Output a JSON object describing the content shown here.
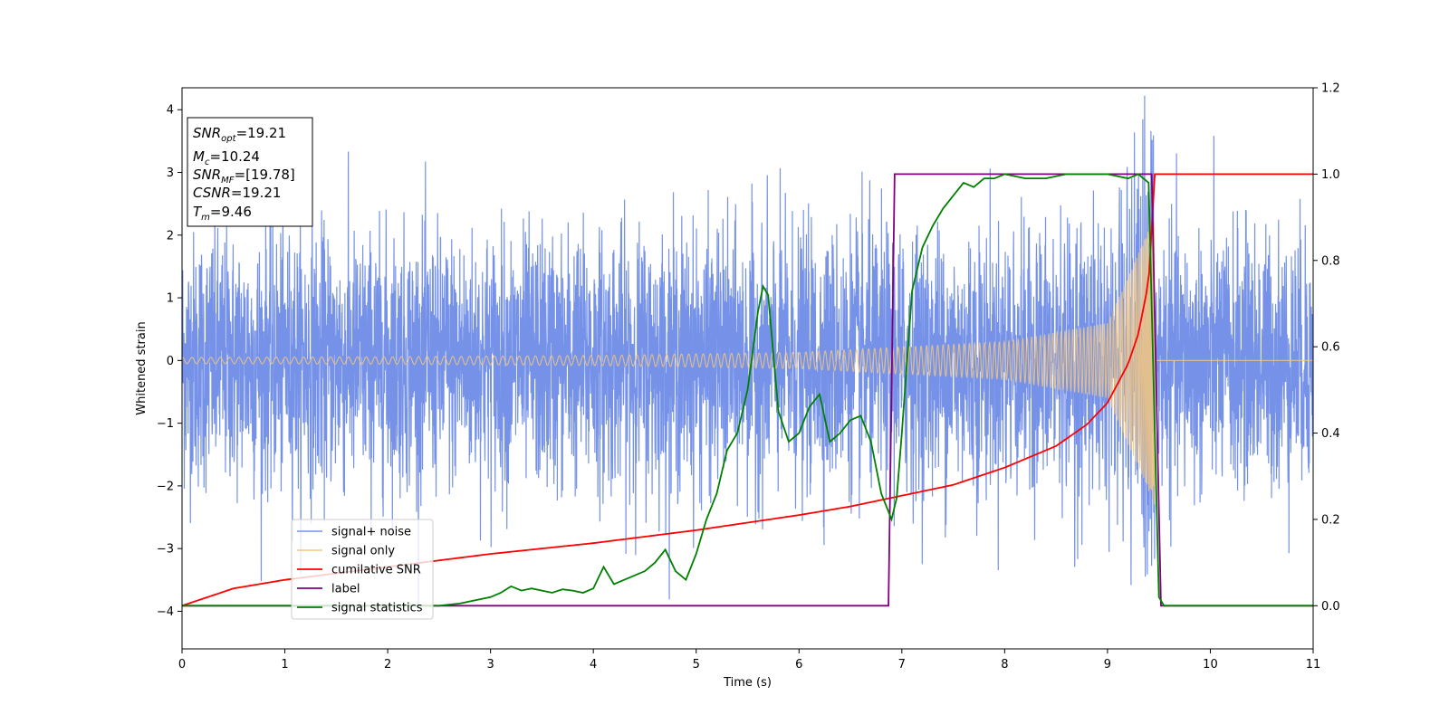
{
  "chart_data": {
    "type": "line",
    "xlabel": "Time (s)",
    "ylabel": "Whitened strain",
    "xlim": [
      0,
      11
    ],
    "ylim": [
      -4.6,
      4.35
    ],
    "y2lim": [
      -0.1,
      1.2
    ],
    "xticks": [
      0,
      1,
      2,
      3,
      4,
      5,
      6,
      7,
      8,
      9,
      10,
      11
    ],
    "yticks": [
      -4,
      -3,
      -2,
      -1,
      0,
      1,
      2,
      3,
      4
    ],
    "y2ticks": [
      0.0,
      0.2,
      0.4,
      0.6,
      0.8,
      1.0,
      1.2
    ],
    "xtick_labels": [
      "0",
      "1",
      "2",
      "3",
      "4",
      "5",
      "6",
      "7",
      "8",
      "9",
      "10",
      "11"
    ],
    "ytick_labels": [
      "−4",
      "−3",
      "−2",
      "−1",
      "0",
      "1",
      "2",
      "3",
      "4"
    ],
    "y2tick_labels": [
      "0.0",
      "0.2",
      "0.4",
      "0.6",
      "0.8",
      "1.0",
      "1.2"
    ],
    "grid": false,
    "legend_position": "lower-left",
    "info_box": {
      "lines": [
        {
          "main": "SNR",
          "sub": "opt",
          "rest": "=19.21"
        },
        {
          "main": "M",
          "sub": "c",
          "rest": "=10.24"
        },
        {
          "main": "SNR",
          "sub": "MF",
          "rest": "=[19.78]"
        },
        {
          "main": "CSNR",
          "sub": "",
          "rest": "=19.21"
        },
        {
          "main": "T",
          "sub": "m",
          "rest": "=9.46"
        }
      ]
    },
    "series": [
      {
        "name": "signal+ noise",
        "axis": "left",
        "color": "#7592e8",
        "kind": "noise",
        "noise_std": 1.0,
        "envelope_x": [
          0,
          2,
          4,
          6,
          8,
          9,
          9.46
        ],
        "envelope_y": [
          0.05,
          0.06,
          0.08,
          0.13,
          0.3,
          0.6,
          2.3
        ],
        "end_x": 9.46
      },
      {
        "name": "signal only",
        "axis": "left",
        "color": "#f5c77e",
        "kind": "chirp",
        "envelope_x": [
          0,
          2,
          4,
          6,
          8,
          9,
          9.46
        ],
        "envelope_y": [
          0.05,
          0.06,
          0.08,
          0.13,
          0.3,
          0.6,
          2.3
        ],
        "end_x": 9.46
      },
      {
        "name": "cumilative SNR",
        "axis": "right",
        "color": "#ff0000",
        "x": [
          0,
          0.5,
          1,
          2,
          3,
          4,
          5,
          6,
          6.5,
          7,
          7.5,
          8,
          8.5,
          8.8,
          9.0,
          9.2,
          9.3,
          9.4,
          9.46,
          11
        ],
        "y": [
          0.0,
          0.04,
          0.06,
          0.09,
          0.12,
          0.145,
          0.175,
          0.21,
          0.23,
          0.255,
          0.28,
          0.32,
          0.37,
          0.42,
          0.47,
          0.56,
          0.63,
          0.75,
          1.0,
          1.0
        ]
      },
      {
        "name": "label",
        "axis": "right",
        "color": "#800080",
        "x": [
          0,
          6.87,
          6.93,
          9.43,
          9.52,
          11
        ],
        "y": [
          0,
          0,
          1,
          1,
          0,
          0
        ]
      },
      {
        "name": "signal statistics",
        "axis": "right",
        "color": "#008000",
        "x": [
          0,
          0.5,
          1,
          1.5,
          2,
          2.5,
          2.7,
          2.8,
          2.9,
          3.0,
          3.1,
          3.2,
          3.3,
          3.4,
          3.5,
          3.6,
          3.7,
          3.8,
          3.9,
          4.0,
          4.1,
          4.2,
          4.3,
          4.4,
          4.5,
          4.6,
          4.7,
          4.8,
          4.9,
          5.0,
          5.1,
          5.2,
          5.3,
          5.4,
          5.5,
          5.6,
          5.65,
          5.7,
          5.8,
          5.9,
          6.0,
          6.1,
          6.2,
          6.3,
          6.4,
          6.5,
          6.6,
          6.7,
          6.8,
          6.9,
          6.95,
          7.0,
          7.1,
          7.2,
          7.3,
          7.4,
          7.5,
          7.6,
          7.7,
          7.8,
          7.9,
          8.0,
          8.2,
          8.4,
          8.6,
          8.8,
          9.0,
          9.2,
          9.3,
          9.4,
          9.45,
          9.5,
          9.55,
          9.6,
          11
        ],
        "y": [
          0.0,
          0.0,
          0.0,
          0.0,
          0.0,
          0.0,
          0.005,
          0.01,
          0.015,
          0.02,
          0.03,
          0.045,
          0.035,
          0.04,
          0.035,
          0.03,
          0.038,
          0.035,
          0.03,
          0.04,
          0.09,
          0.05,
          0.06,
          0.07,
          0.08,
          0.1,
          0.13,
          0.08,
          0.06,
          0.12,
          0.2,
          0.26,
          0.36,
          0.4,
          0.5,
          0.68,
          0.74,
          0.72,
          0.45,
          0.38,
          0.4,
          0.46,
          0.49,
          0.38,
          0.4,
          0.43,
          0.44,
          0.38,
          0.26,
          0.2,
          0.25,
          0.4,
          0.73,
          0.83,
          0.88,
          0.92,
          0.95,
          0.98,
          0.97,
          0.99,
          0.99,
          1.0,
          0.99,
          0.99,
          1.0,
          1.0,
          1.0,
          0.99,
          1.0,
          0.98,
          0.5,
          0.02,
          0.0,
          0.0,
          0.0
        ]
      }
    ]
  }
}
